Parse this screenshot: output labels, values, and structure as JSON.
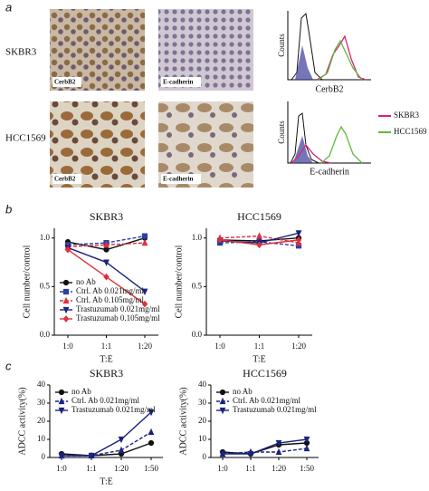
{
  "figure": {
    "panels": [
      "a",
      "b",
      "c"
    ],
    "rows": [
      "SKBR3",
      "HCC1569"
    ],
    "stains": [
      [
        "CerbB2",
        "E-cadherin"
      ],
      [
        "CerbB2",
        "E-cadherin"
      ]
    ],
    "histograms": {
      "xlabels": [
        "CerbB2",
        "E-cadherin"
      ],
      "ylabel": "Counts",
      "legend": [
        {
          "name": "SKBR3",
          "color": "#d6247a"
        },
        {
          "name": "HCC1569",
          "color": "#5fba3c"
        }
      ]
    }
  },
  "chart_data": [
    {
      "type": "line",
      "title": "SKBR3",
      "ylabel": "Cell number/control",
      "xlabel": "T:E",
      "categories": [
        "1:0",
        "1:1",
        "1:20"
      ],
      "ylim": [
        0,
        1.1
      ],
      "yticks": [
        {
          "value": 0,
          "label": "0.0"
        },
        0.5,
        {
          "value": 1,
          "label": "1.0"
        }
      ],
      "legend": "lower left",
      "series": [
        {
          "name": "no Ab",
          "color": "#111111",
          "marker": "circle",
          "dash": false,
          "values": [
            0.96,
            0.88,
            1.0
          ]
        },
        {
          "name": "Ctrl. Ab 0.021mg/ml",
          "color": "#2a3fa8",
          "marker": "square",
          "dash": true,
          "values": [
            0.93,
            0.95,
            1.02
          ]
        },
        {
          "name": "Ctrl. Ab 0.105mg/ml",
          "color": "#e0303a",
          "marker": "triangle",
          "dash": true,
          "values": [
            0.91,
            0.93,
            0.95
          ]
        },
        {
          "name": "Trastuzumab 0.021mg/ml",
          "color": "#1a237e",
          "marker": "down",
          "dash": false,
          "values": [
            0.9,
            0.75,
            0.45
          ]
        },
        {
          "name": "Trastuzumab 0.105mg/ml",
          "color": "#e0303a",
          "marker": "diamond",
          "dash": false,
          "values": [
            0.88,
            0.6,
            0.32
          ]
        }
      ]
    },
    {
      "type": "line",
      "title": "HCC1569",
      "ylabel": "Cell number/control",
      "xlabel": "T:E",
      "categories": [
        "1:0",
        "1:1",
        "1:20"
      ],
      "ylim": [
        0,
        1.1
      ],
      "yticks": [
        {
          "value": 0,
          "label": "0.0"
        },
        0.5,
        {
          "value": 1,
          "label": "1.0"
        }
      ],
      "series": [
        {
          "color": "#111111",
          "marker": "circle",
          "dash": false,
          "values": [
            0.98,
            0.97,
            1.0
          ]
        },
        {
          "color": "#2a3fa8",
          "marker": "square",
          "dash": true,
          "values": [
            0.95,
            0.96,
            0.92
          ]
        },
        {
          "color": "#e0303a",
          "marker": "triangle",
          "dash": true,
          "values": [
            1.0,
            1.02,
            0.95
          ]
        },
        {
          "color": "#1a237e",
          "marker": "down",
          "dash": false,
          "values": [
            0.97,
            0.95,
            1.05
          ]
        },
        {
          "color": "#e0303a",
          "marker": "diamond",
          "dash": false,
          "values": [
            0.98,
            0.93,
            0.98
          ]
        }
      ]
    },
    {
      "type": "line",
      "title": "SKBR3",
      "ylabel": "ADCC activity(%)",
      "xlabel": "T:E",
      "categories": [
        "1:0",
        "1:1",
        "1:20",
        "1:50"
      ],
      "ylim": [
        0,
        40
      ],
      "yticks": [
        0,
        10,
        20,
        30,
        40
      ],
      "legend": "upper left",
      "series": [
        {
          "name": "no Ab",
          "color": "#111111",
          "marker": "circle",
          "dash": false,
          "values": [
            2,
            1,
            2,
            8
          ]
        },
        {
          "name": "Ctrl. Ab 0.021mg/ml",
          "color": "#1a237e",
          "marker": "triangle",
          "dash": true,
          "values": [
            1,
            1,
            4,
            14
          ]
        },
        {
          "name": "Trastuzumab 0.021mg/ml",
          "color": "#1a237e",
          "marker": "down",
          "dash": false,
          "values": [
            1,
            1,
            10,
            25
          ]
        }
      ]
    },
    {
      "type": "line",
      "title": "HCC1569",
      "ylabel": "ADCC activity(%)",
      "categories": [
        "1:0",
        "1:1",
        "1:20",
        "1:50"
      ],
      "ylim": [
        0,
        40
      ],
      "yticks": [
        0,
        10,
        20,
        30,
        40
      ],
      "legend": "upper left",
      "series": [
        {
          "name": "no Ab",
          "color": "#111111",
          "marker": "circle",
          "dash": false,
          "values": [
            3,
            2,
            7,
            8
          ]
        },
        {
          "name": "Ctrl. Ab 0.021mg/ml",
          "color": "#1a237e",
          "marker": "triangle",
          "dash": true,
          "values": [
            2,
            3,
            3,
            5
          ]
        },
        {
          "name": "Trastuzumab 0.021mg/ml",
          "color": "#1a237e",
          "marker": "down",
          "dash": false,
          "values": [
            2,
            2,
            8,
            10
          ]
        }
      ]
    }
  ]
}
